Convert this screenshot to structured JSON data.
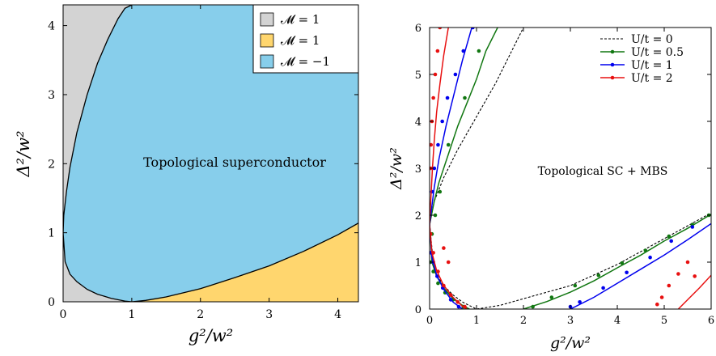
{
  "chart_data": [
    {
      "type": "area",
      "title": "",
      "xlabel": "g²/w²",
      "ylabel": "Δ²/w²",
      "xlim": [
        0,
        4.3
      ],
      "ylim": [
        0,
        4.3
      ],
      "xticks": [
        "0",
        "1",
        "2",
        "3",
        "4"
      ],
      "yticks": [
        "0",
        "1",
        "2",
        "3",
        "4"
      ],
      "annotation": "Topological superconductor",
      "legend_position": "top-right",
      "regions": [
        {
          "name": "𝓜 = 1",
          "color": "#d3d3d3"
        },
        {
          "name": "𝓜 = 1",
          "color": "#ffd66e"
        },
        {
          "name": "𝓜 = −1",
          "color": "#87ceeb"
        }
      ],
      "boundary_upper": {
        "x": [
          0,
          0.01,
          0.05,
          0.1,
          0.2,
          0.35,
          0.5,
          0.65,
          0.8,
          0.9,
          1.0
        ],
        "y": [
          1.0,
          1.25,
          1.6,
          1.95,
          2.45,
          3.0,
          3.45,
          3.8,
          4.1,
          4.25,
          4.3
        ]
      },
      "boundary_lower": {
        "x": [
          0,
          0.03,
          0.1,
          0.2,
          0.35,
          0.5,
          0.7,
          0.9,
          1.0,
          1.2,
          1.5,
          2.0,
          2.5,
          3.0,
          3.5,
          4.0,
          4.3
        ],
        "y": [
          1.0,
          0.58,
          0.4,
          0.29,
          0.18,
          0.11,
          0.05,
          0.01,
          0.0,
          0.02,
          0.07,
          0.19,
          0.35,
          0.52,
          0.73,
          0.97,
          1.14
        ]
      }
    },
    {
      "type": "line",
      "title": "",
      "xlabel": "g²/w²",
      "ylabel": "Δ²/w²",
      "xlim": [
        0,
        6
      ],
      "ylim": [
        0,
        6
      ],
      "xticks": [
        "0",
        "1",
        "2",
        "3",
        "4",
        "5",
        "6"
      ],
      "yticks": [
        "0",
        "1",
        "2",
        "3",
        "4",
        "5",
        "6"
      ],
      "annotation": "Topological SC + MBS",
      "legend_position": "top-right",
      "series": [
        {
          "name": "U/t = 0",
          "color": "#000000",
          "upper": {
            "x": [
              0,
              0.1,
              0.3,
              0.6,
              1.0,
              1.4,
              1.8,
              2.0
            ],
            "y": [
              1.8,
              2.3,
              2.8,
              3.4,
              4.1,
              4.8,
              5.6,
              6.0
            ]
          },
          "lower": {
            "x": [
              0,
              0.1,
              0.3,
              0.5,
              0.7,
              1.0,
              1.5,
              2.0,
              3.0,
              4.0,
              5.0,
              6.0
            ],
            "y": [
              1.8,
              0.8,
              0.5,
              0.3,
              0.15,
              0.0,
              0.08,
              0.22,
              0.5,
              0.95,
              1.5,
              2.05
            ]
          }
        },
        {
          "name": "U/t = 0.5",
          "color": "#117711",
          "upper": {
            "x": [
              0,
              0.1,
              0.2,
              0.4,
              0.6,
              0.8,
              1.0,
              1.2,
              1.45
            ],
            "y": [
              1.8,
              2.3,
              2.7,
              3.3,
              3.9,
              4.4,
              4.9,
              5.5,
              6.0
            ]
          },
          "lower": {
            "x": [
              0,
              0.05,
              0.15,
              0.3,
              0.5,
              0.7,
              0.85
            ],
            "y": [
              1.8,
              1.0,
              0.7,
              0.45,
              0.22,
              0.08,
              0.0
            ]
          },
          "right": {
            "x": [
              2.0,
              2.5,
              3.0,
              3.5,
              4.0,
              4.5,
              5.0,
              5.5,
              6.0
            ],
            "y": [
              0.0,
              0.16,
              0.36,
              0.6,
              0.88,
              1.15,
              1.45,
              1.72,
              2.02
            ]
          },
          "points": {
            "x": [
              0.4,
              0.75,
              1.05,
              0.22,
              0.12,
              0.05,
              0.02,
              0.08,
              0.18,
              0.33,
              0.5,
              0.72,
              2.2,
              2.6,
              3.1,
              3.6,
              4.1,
              4.6,
              5.1,
              5.6,
              5.95
            ],
            "y": [
              3.5,
              4.5,
              5.5,
              2.5,
              2.0,
              1.6,
              1.0,
              0.8,
              0.55,
              0.35,
              0.2,
              0.05,
              0.05,
              0.25,
              0.5,
              0.72,
              0.98,
              1.25,
              1.55,
              1.8,
              2.0
            ]
          }
        },
        {
          "name": "U/t = 1",
          "color": "#0000ee",
          "upper": {
            "x": [
              0,
              0.05,
              0.1,
              0.2,
              0.35,
              0.5,
              0.7,
              0.9
            ],
            "y": [
              1.8,
              2.2,
              2.6,
              3.2,
              3.9,
              4.5,
              5.3,
              6.0
            ]
          },
          "lower": {
            "x": [
              0,
              0.05,
              0.15,
              0.3,
              0.5,
              0.7
            ],
            "y": [
              1.8,
              1.1,
              0.72,
              0.42,
              0.15,
              0.0
            ]
          },
          "right": {
            "x": [
              3.0,
              3.5,
              4.0,
              4.5,
              5.0,
              5.5,
              6.0
            ],
            "y": [
              0.0,
              0.25,
              0.55,
              0.85,
              1.15,
              1.48,
              1.82
            ]
          },
          "points": {
            "x": [
              0.05,
              0.1,
              0.18,
              0.27,
              0.38,
              0.55,
              0.72,
              0.92,
              0.03,
              0.08,
              0.16,
              0.28,
              0.45,
              0.62,
              3.0,
              3.2,
              3.7,
              4.2,
              4.7,
              5.15,
              5.6
            ],
            "y": [
              2.5,
              3.0,
              3.5,
              4.0,
              4.5,
              5.0,
              5.5,
              6.0,
              1.2,
              1.0,
              0.7,
              0.45,
              0.2,
              0.05,
              0.05,
              0.15,
              0.45,
              0.78,
              1.1,
              1.45,
              1.75
            ]
          }
        },
        {
          "name": "U/t = 2",
          "color": "#e81010",
          "upper": {
            "x": [
              0,
              0.03,
              0.06,
              0.1,
              0.15,
              0.22,
              0.3,
              0.4
            ],
            "y": [
              1.8,
              2.4,
              3.0,
              3.6,
              4.2,
              4.8,
              5.4,
              6.0
            ]
          },
          "lower": {
            "x": [
              0,
              0.05,
              0.15,
              0.3,
              0.5,
              0.7,
              0.8
            ],
            "y": [
              1.8,
              1.2,
              0.82,
              0.5,
              0.25,
              0.06,
              0.0
            ]
          },
          "right": {
            "x": [
              5.3,
              5.5,
              5.75,
              6.0
            ],
            "y": [
              0.0,
              0.2,
              0.45,
              0.72
            ]
          },
          "points": {
            "x": [
              0.02,
              0.03,
              0.05,
              0.08,
              0.12,
              0.17,
              0.22,
              0.3,
              0.4,
              0.02,
              0.08,
              0.18,
              0.3,
              0.45,
              0.6,
              0.75,
              4.85,
              4.95,
              5.1,
              5.3,
              5.5,
              5.65
            ],
            "y": [
              3.0,
              3.5,
              4.0,
              4.5,
              5.0,
              5.5,
              6.0,
              1.3,
              1.0,
              1.6,
              1.2,
              0.8,
              0.5,
              0.3,
              0.15,
              0.05,
              0.1,
              0.25,
              0.5,
              0.75,
              1.0,
              0.7
            ]
          }
        }
      ]
    }
  ]
}
